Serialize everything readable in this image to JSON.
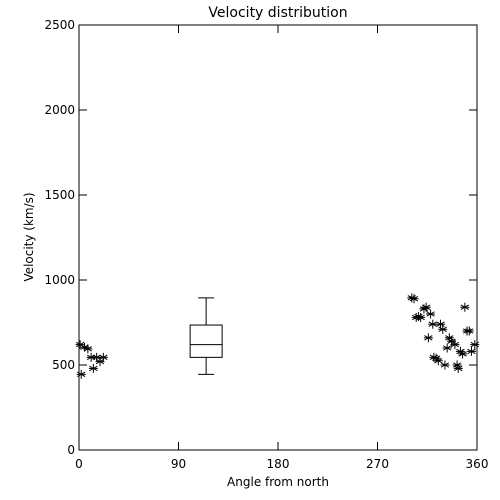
{
  "chart_data": {
    "type": "scatter",
    "title": "Velocity distribution",
    "xlabel": "Angle from north",
    "ylabel": "Velocity (km/s)",
    "xlim": [
      0,
      360
    ],
    "ylim": [
      0,
      2500
    ],
    "xticks": [
      0,
      90,
      180,
      270,
      360
    ],
    "yticks": [
      0,
      500,
      1000,
      1500,
      2000,
      2500
    ],
    "grid": false,
    "points": [
      {
        "x": 1,
        "y": 620
      },
      {
        "x": 2,
        "y": 445
      },
      {
        "x": 5,
        "y": 605
      },
      {
        "x": 8,
        "y": 595
      },
      {
        "x": 11,
        "y": 545
      },
      {
        "x": 13,
        "y": 480
      },
      {
        "x": 16,
        "y": 545
      },
      {
        "x": 19,
        "y": 520
      },
      {
        "x": 22,
        "y": 545
      },
      {
        "x": 301,
        "y": 895
      },
      {
        "x": 303,
        "y": 890
      },
      {
        "x": 305,
        "y": 780
      },
      {
        "x": 307,
        "y": 785
      },
      {
        "x": 309,
        "y": 780
      },
      {
        "x": 312,
        "y": 830
      },
      {
        "x": 314,
        "y": 840
      },
      {
        "x": 316,
        "y": 660
      },
      {
        "x": 318,
        "y": 800
      },
      {
        "x": 320,
        "y": 740
      },
      {
        "x": 321,
        "y": 545
      },
      {
        "x": 323,
        "y": 540
      },
      {
        "x": 325,
        "y": 525
      },
      {
        "x": 327,
        "y": 740
      },
      {
        "x": 329,
        "y": 710
      },
      {
        "x": 331,
        "y": 500
      },
      {
        "x": 333,
        "y": 600
      },
      {
        "x": 335,
        "y": 660
      },
      {
        "x": 337,
        "y": 640
      },
      {
        "x": 340,
        "y": 620
      },
      {
        "x": 342,
        "y": 500
      },
      {
        "x": 343,
        "y": 480
      },
      {
        "x": 345,
        "y": 580
      },
      {
        "x": 347,
        "y": 565
      },
      {
        "x": 349,
        "y": 840
      },
      {
        "x": 351,
        "y": 700
      },
      {
        "x": 353,
        "y": 700
      },
      {
        "x": 355,
        "y": 580
      },
      {
        "x": 358,
        "y": 620
      }
    ],
    "boxplot": {
      "x": 115,
      "whisker_low": 445,
      "q1": 545,
      "median": 620,
      "q3": 735,
      "whisker_high": 895
    }
  }
}
